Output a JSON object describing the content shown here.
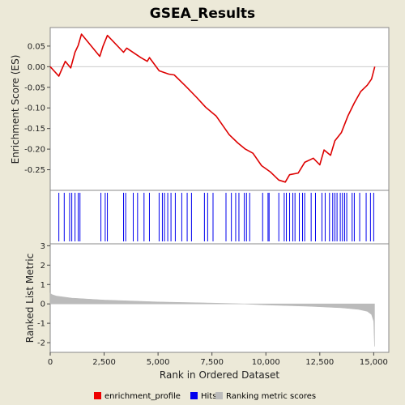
{
  "chart_data": {
    "type": "line",
    "title": "GSEA_Results",
    "xlabel": "Rank in Ordered Dataset",
    "xlim": [
      0,
      15700
    ],
    "xticks": [
      0,
      2500,
      5000,
      7500,
      10000,
      12500,
      15000
    ],
    "xtick_labels": [
      "0",
      "2,500",
      "5,000",
      "7,500",
      "10,000",
      "12,500",
      "15,000"
    ],
    "enrichment": {
      "ylabel": "Enrichment Score (ES)",
      "ylim": [
        -0.3,
        0.095
      ],
      "yticks": [
        0.05,
        0.0,
        -0.05,
        -0.1,
        -0.15,
        -0.2,
        -0.25
      ],
      "ytick_labels": [
        "0.05",
        "0.00",
        "-0.05",
        "-0.10",
        "-0.15",
        "-0.20",
        "-0.25"
      ],
      "color": "#dd0000",
      "points": [
        [
          0,
          0
        ],
        [
          400,
          -0.023
        ],
        [
          700,
          0.013
        ],
        [
          950,
          -0.003
        ],
        [
          1150,
          0.035
        ],
        [
          1300,
          0.052
        ],
        [
          1450,
          0.079
        ],
        [
          2300,
          0.025
        ],
        [
          2450,
          0.05
        ],
        [
          2650,
          0.076
        ],
        [
          3400,
          0.035
        ],
        [
          3550,
          0.045
        ],
        [
          4200,
          0.022
        ],
        [
          4500,
          0.013
        ],
        [
          4600,
          0.022
        ],
        [
          5050,
          -0.01
        ],
        [
          5500,
          -0.018
        ],
        [
          5750,
          -0.02
        ],
        [
          6300,
          -0.048
        ],
        [
          6800,
          -0.075
        ],
        [
          7200,
          -0.098
        ],
        [
          7700,
          -0.12
        ],
        [
          8300,
          -0.165
        ],
        [
          8700,
          -0.185
        ],
        [
          9050,
          -0.2
        ],
        [
          9400,
          -0.21
        ],
        [
          9800,
          -0.24
        ],
        [
          10200,
          -0.255
        ],
        [
          10600,
          -0.275
        ],
        [
          10900,
          -0.28
        ],
        [
          11100,
          -0.262
        ],
        [
          11500,
          -0.258
        ],
        [
          11800,
          -0.232
        ],
        [
          12200,
          -0.222
        ],
        [
          12500,
          -0.238
        ],
        [
          12700,
          -0.202
        ],
        [
          13000,
          -0.215
        ],
        [
          13200,
          -0.18
        ],
        [
          13500,
          -0.16
        ],
        [
          13800,
          -0.12
        ],
        [
          14100,
          -0.088
        ],
        [
          14400,
          -0.06
        ],
        [
          14700,
          -0.045
        ],
        [
          14900,
          -0.03
        ],
        [
          15050,
          0.0
        ]
      ]
    },
    "hits": {
      "label": "Hits",
      "color": "#0000ee",
      "positions": [
        400,
        650,
        900,
        1000,
        1150,
        1300,
        1380,
        2350,
        2550,
        2650,
        3400,
        3500,
        3850,
        4050,
        4350,
        4600,
        5050,
        5200,
        5300,
        5450,
        5600,
        5800,
        6100,
        6350,
        6550,
        7150,
        7300,
        7550,
        8150,
        8400,
        8600,
        8750,
        9000,
        9100,
        9250,
        9850,
        10100,
        10150,
        10600,
        10850,
        10950,
        11100,
        11250,
        11350,
        11550,
        11700,
        11800,
        12100,
        12300,
        12600,
        12750,
        12950,
        13100,
        13200,
        13300,
        13450,
        13550,
        13650,
        13750,
        14000,
        14100,
        14350,
        14650,
        14850,
        15000
      ]
    },
    "metric": {
      "ylabel": "Ranked List Metric",
      "ylim": [
        -2.5,
        3.1
      ],
      "yticks": [
        3,
        2,
        1,
        0,
        -1,
        -2
      ],
      "ytick_labels": [
        "3",
        "2",
        "1",
        "0",
        "-1",
        "-2"
      ],
      "color": "#bbbbbb",
      "points": [
        [
          0,
          0.55
        ],
        [
          80,
          0.48
        ],
        [
          300,
          0.4
        ],
        [
          1000,
          0.3
        ],
        [
          2500,
          0.2
        ],
        [
          5000,
          0.1
        ],
        [
          7500,
          0.04
        ],
        [
          9000,
          0.0
        ],
        [
          10000,
          -0.05
        ],
        [
          12000,
          -0.12
        ],
        [
          13500,
          -0.2
        ],
        [
          14300,
          -0.28
        ],
        [
          14700,
          -0.38
        ],
        [
          14900,
          -0.55
        ],
        [
          15000,
          -0.9
        ],
        [
          15040,
          -2.2
        ]
      ]
    },
    "legend": {
      "position": "bottom",
      "items": [
        {
          "label": "enrichment_profile",
          "color": "#ee0000"
        },
        {
          "label": "Hits",
          "color": "#0000ee"
        },
        {
          "label": "Ranking metric scores",
          "color": "#bbbbbb"
        }
      ]
    }
  }
}
